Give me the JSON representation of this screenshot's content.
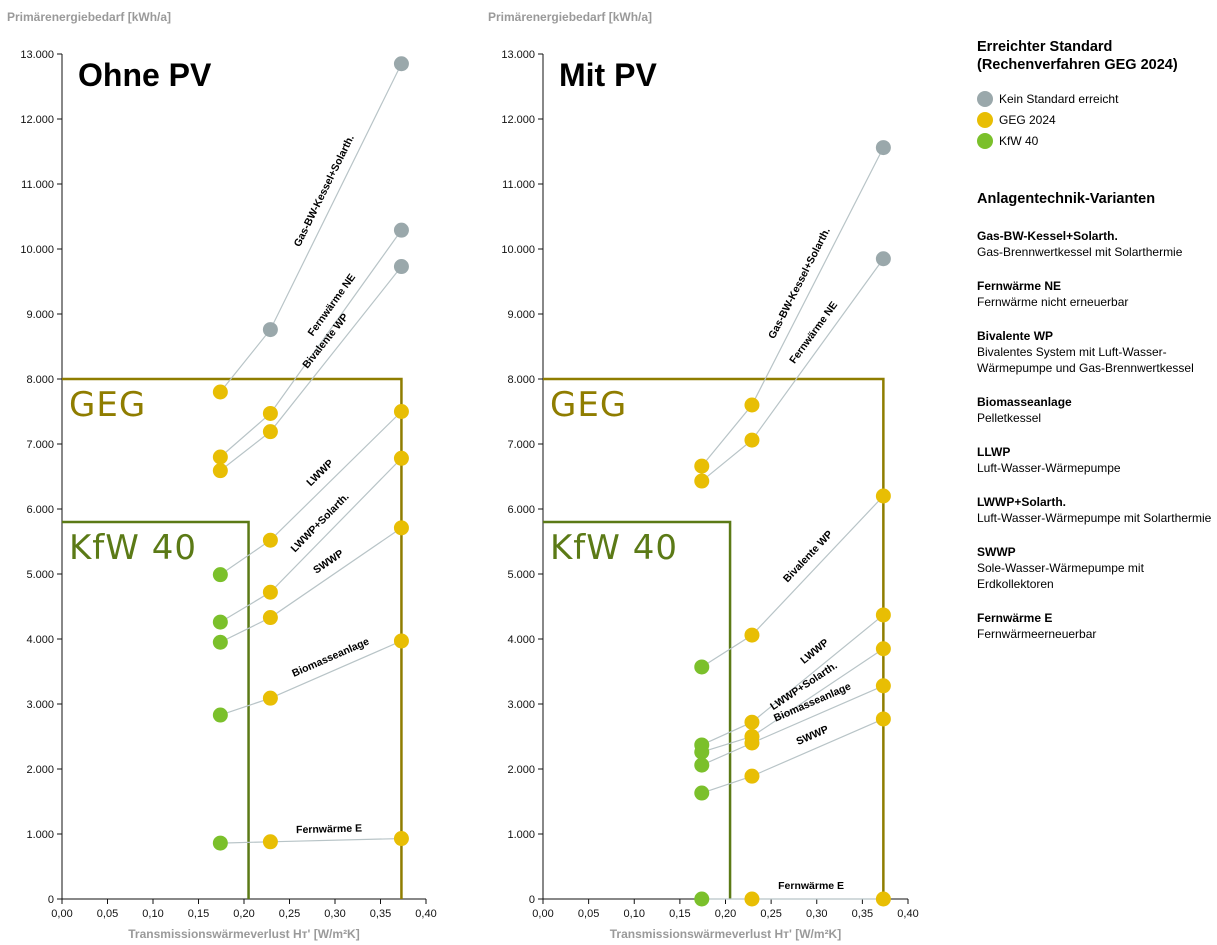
{
  "colors": {
    "none": "#9aa8ab",
    "geg": "#e8be04",
    "kfw": "#7bc02b",
    "geg_frame": "#8f7d00",
    "kfw_frame": "#5b7a16",
    "axis": "#111111",
    "axis_label": "#9a9a9a",
    "connector": "#b8c4c7"
  },
  "legend": {
    "title": "Erreichter Standard (Rechenverfahren GEG 2024)",
    "items": [
      {
        "label": "Kein Standard erreicht",
        "status": "none"
      },
      {
        "label": "GEG 2024",
        "status": "geg"
      },
      {
        "label": "KfW 40",
        "status": "kfw"
      }
    ],
    "variants_title": "Anlagentechnik-Varianten",
    "variants": [
      {
        "name": "Gas-BW-Kessel+Solarth.",
        "desc": "Gas-Brennwertkessel mit Solarthermie"
      },
      {
        "name": "Fernwärme NE",
        "desc": "Fernwärme nicht erneuerbar"
      },
      {
        "name": "Bivalente WP",
        "desc": "Bivalentes System mit Luft-Wasser-Wärmepumpe und Gas-Brennwertkessel"
      },
      {
        "name": "Biomasseanlage",
        "desc": "Pelletkessel"
      },
      {
        "name": "LLWP",
        "desc": "Luft-Wasser-Wärmepumpe"
      },
      {
        "name": "LWWP+Solarth.",
        "desc": "Luft-Wasser-Wärmepumpe mit Solarthermie"
      },
      {
        "name": "SWWP",
        "desc": "Sole-Wasser-Wärmepumpe mit Erdkollektoren"
      },
      {
        "name": "Fernwärme E",
        "desc": "Fernwärmeerneuerbar"
      }
    ]
  },
  "chart_data": [
    {
      "type": "line",
      "title": "Ohne PV",
      "ylabel": "Primärenergiebedarf [kWh/a]",
      "xlabel": "Transmissionswärmeverlust Hᴛ' [W/m²K]",
      "xlim": [
        0,
        0.4
      ],
      "ylim": [
        0,
        13000
      ],
      "x_ticks": [
        "0,00",
        "0,05",
        "0,10",
        "0,15",
        "0,20",
        "0,25",
        "0,30",
        "0,35",
        "0,40"
      ],
      "y_ticks": [
        "0",
        "1.000",
        "2.000",
        "3.000",
        "4.000",
        "5.000",
        "6.000",
        "7.000",
        "8.000",
        "9.000",
        "10.000",
        "11.000",
        "12.000",
        "13.000"
      ],
      "thresholds": [
        {
          "label": "GEG",
          "y": 8000,
          "x": 0.373,
          "status": "geg"
        },
        {
          "label": "KfW 40",
          "y": 5800,
          "x": 0.205,
          "status": "kfw"
        }
      ],
      "series": [
        {
          "name": "Gas-BW-Kessel+Solarth.",
          "points": [
            {
              "x": 0.174,
              "y": 7800,
              "s": "geg"
            },
            {
              "x": 0.229,
              "y": 8760,
              "s": "none"
            },
            {
              "x": 0.373,
              "y": 12850,
              "s": "none"
            }
          ]
        },
        {
          "name": "Fernwärme NE",
          "points": [
            {
              "x": 0.174,
              "y": 6800,
              "s": "geg"
            },
            {
              "x": 0.229,
              "y": 7470,
              "s": "geg"
            },
            {
              "x": 0.373,
              "y": 10290,
              "s": "none"
            }
          ]
        },
        {
          "name": "Bivalente WP",
          "points": [
            {
              "x": 0.174,
              "y": 6590,
              "s": "geg"
            },
            {
              "x": 0.229,
              "y": 7190,
              "s": "geg"
            },
            {
              "x": 0.373,
              "y": 9730,
              "s": "none"
            }
          ]
        },
        {
          "name": "LWWP",
          "points": [
            {
              "x": 0.174,
              "y": 4990,
              "s": "kfw"
            },
            {
              "x": 0.229,
              "y": 5520,
              "s": "geg"
            },
            {
              "x": 0.373,
              "y": 7500,
              "s": "geg"
            }
          ]
        },
        {
          "name": "LWWP+Solarth.",
          "points": [
            {
              "x": 0.174,
              "y": 4260,
              "s": "kfw"
            },
            {
              "x": 0.229,
              "y": 4720,
              "s": "geg"
            },
            {
              "x": 0.373,
              "y": 6780,
              "s": "geg"
            }
          ]
        },
        {
          "name": "SWWP",
          "points": [
            {
              "x": 0.174,
              "y": 3950,
              "s": "kfw"
            },
            {
              "x": 0.229,
              "y": 4330,
              "s": "geg"
            },
            {
              "x": 0.373,
              "y": 5710,
              "s": "geg"
            }
          ]
        },
        {
          "name": "Biomasseanlage",
          "points": [
            {
              "x": 0.174,
              "y": 2830,
              "s": "kfw"
            },
            {
              "x": 0.229,
              "y": 3090,
              "s": "geg"
            },
            {
              "x": 0.373,
              "y": 3970,
              "s": "geg"
            }
          ]
        },
        {
          "name": "Fernwärme E",
          "points": [
            {
              "x": 0.174,
              "y": 860,
              "s": "kfw"
            },
            {
              "x": 0.229,
              "y": 880,
              "s": "geg"
            },
            {
              "x": 0.373,
              "y": 930,
              "s": "geg"
            }
          ]
        }
      ]
    },
    {
      "type": "line",
      "title": "Mit PV",
      "ylabel": "Primärenergiebedarf [kWh/a]",
      "xlabel": "Transmissionswärmeverlust Hᴛ' [W/m²K]",
      "xlim": [
        0,
        0.4
      ],
      "ylim": [
        0,
        13000
      ],
      "x_ticks": [
        "0,00",
        "0,05",
        "0,10",
        "0,15",
        "0,20",
        "0,25",
        "0,30",
        "0,35",
        "0,40"
      ],
      "y_ticks": [
        "0",
        "1.000",
        "2.000",
        "3.000",
        "4.000",
        "5.000",
        "6.000",
        "7.000",
        "8.000",
        "9.000",
        "10.000",
        "11.000",
        "12.000",
        "13.000"
      ],
      "thresholds": [
        {
          "label": "GEG",
          "y": 8000,
          "x": 0.373,
          "status": "geg"
        },
        {
          "label": "KfW 40",
          "y": 5800,
          "x": 0.205,
          "status": "kfw"
        }
      ],
      "series": [
        {
          "name": "Gas-BW-Kessel+Solarth.",
          "points": [
            {
              "x": 0.174,
              "y": 6660,
              "s": "geg"
            },
            {
              "x": 0.229,
              "y": 7600,
              "s": "geg"
            },
            {
              "x": 0.373,
              "y": 11560,
              "s": "none"
            }
          ]
        },
        {
          "name": "Fernwärme NE",
          "points": [
            {
              "x": 0.174,
              "y": 6430,
              "s": "geg"
            },
            {
              "x": 0.229,
              "y": 7060,
              "s": "geg"
            },
            {
              "x": 0.373,
              "y": 9850,
              "s": "none"
            }
          ]
        },
        {
          "name": "Bivalente WP",
          "points": [
            {
              "x": 0.174,
              "y": 3570,
              "s": "kfw"
            },
            {
              "x": 0.229,
              "y": 4060,
              "s": "geg"
            },
            {
              "x": 0.373,
              "y": 6200,
              "s": "geg"
            }
          ]
        },
        {
          "name": "LWWP",
          "points": [
            {
              "x": 0.174,
              "y": 2370,
              "s": "kfw"
            },
            {
              "x": 0.229,
              "y": 2720,
              "s": "geg"
            },
            {
              "x": 0.373,
              "y": 4370,
              "s": "geg"
            }
          ]
        },
        {
          "name": "LWWP+Solarth.",
          "points": [
            {
              "x": 0.174,
              "y": 2260,
              "s": "kfw"
            },
            {
              "x": 0.229,
              "y": 2500,
              "s": "geg"
            },
            {
              "x": 0.373,
              "y": 3850,
              "s": "geg"
            }
          ]
        },
        {
          "name": "Biomasseanlage",
          "points": [
            {
              "x": 0.174,
              "y": 2060,
              "s": "kfw"
            },
            {
              "x": 0.229,
              "y": 2400,
              "s": "geg"
            },
            {
              "x": 0.373,
              "y": 3280,
              "s": "geg"
            }
          ]
        },
        {
          "name": "SWWP",
          "points": [
            {
              "x": 0.174,
              "y": 1630,
              "s": "kfw"
            },
            {
              "x": 0.229,
              "y": 1890,
              "s": "geg"
            },
            {
              "x": 0.373,
              "y": 2770,
              "s": "geg"
            }
          ]
        },
        {
          "name": "Fernwärme E",
          "points": [
            {
              "x": 0.174,
              "y": 0,
              "s": "kfw"
            },
            {
              "x": 0.229,
              "y": 0,
              "s": "geg"
            },
            {
              "x": 0.373,
              "y": 0,
              "s": "geg"
            }
          ]
        }
      ]
    }
  ]
}
